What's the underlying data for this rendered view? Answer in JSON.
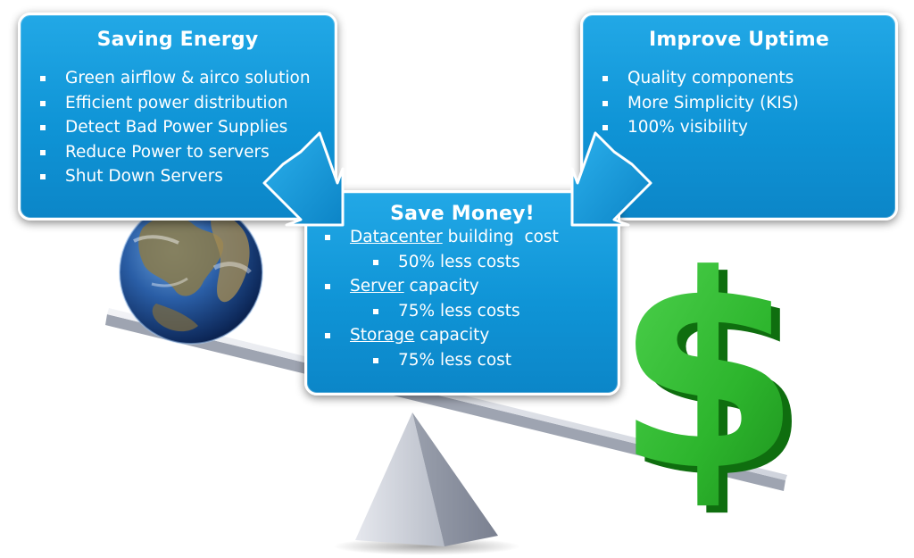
{
  "saving_energy": {
    "title": "Saving Energy",
    "items": [
      "Green airflow & airco solution",
      "Efficient power distribution",
      "Detect Bad Power Supplies",
      "Reduce Power to servers",
      "Shut Down Servers"
    ]
  },
  "improve_uptime": {
    "title": "Improve Uptime",
    "items": [
      "Quality components",
      "More Simplicity (KIS)",
      "100% visibility"
    ]
  },
  "save_money": {
    "title": "Save Money!",
    "items": [
      {
        "term": "Datacenter",
        "rest": " building  cost",
        "sub": "50% less costs"
      },
      {
        "term": "Server",
        "rest": " capacity",
        "sub": "75% less costs"
      },
      {
        "term": "Storage",
        "rest": " capacity",
        "sub": "75% less cost"
      }
    ]
  },
  "colors": {
    "box_blue": "#1a9fe0",
    "dollar_green": "#2eb82e",
    "arrow_blue": "#1ba0e2"
  },
  "icons": [
    "earth-globe",
    "dollar-sign",
    "seesaw-scale",
    "arrow-down-right",
    "arrow-down-left"
  ]
}
